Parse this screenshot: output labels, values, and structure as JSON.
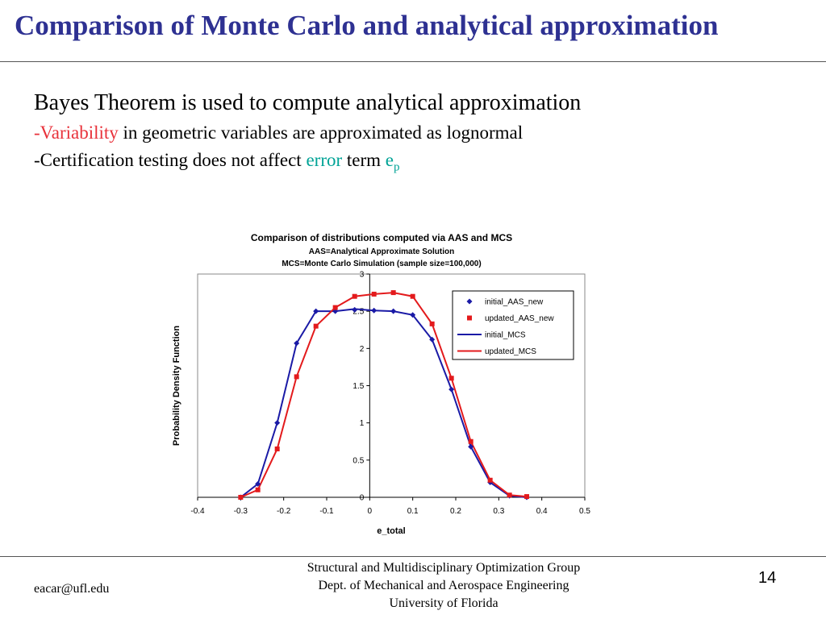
{
  "slide": {
    "title": "Comparison of Monte Carlo and analytical approximation",
    "bullet1": "Bayes Theorem is used to compute analytical approximation",
    "bullet2": {
      "prefix": "-",
      "highlight": "Variability",
      "rest": " in geometric variables are approximated as lognormal"
    },
    "bullet3": {
      "text": "-Certification testing does not affect ",
      "highlight": "error",
      "mid": " term ",
      "symbol": "e",
      "subscript": "p"
    },
    "footer": {
      "email": "eacar@ufl.edu",
      "line1": "Structural and Multidisciplinary Optimization Group",
      "line2": "Dept. of Mechanical and Aerospace Engineering",
      "line3": "University of Florida",
      "page": "14"
    },
    "colors": {
      "title": "#2e3192",
      "highlight_red": "#e8313a",
      "highlight_teal": "#00a396"
    }
  },
  "chart_data": {
    "type": "line",
    "title": "Comparison of distributions computed via AAS and MCS",
    "subtitle1": "AAS=Analytical Approximate Solution",
    "subtitle2": "MCS=Monte Carlo Simulation (sample size=100,000)",
    "xlabel": "e_total",
    "ylabel": "Probability Density Function",
    "xlim": [
      -0.4,
      0.5
    ],
    "ylim": [
      0,
      3
    ],
    "xticks": [
      "-0.4",
      "-0.3",
      "-0.2",
      "-0.1",
      "0",
      "0.1",
      "0.2",
      "0.3",
      "0.4",
      "0.5"
    ],
    "yticks": [
      "0",
      "0.5",
      "1",
      "1.5",
      "2",
      "2.5",
      "3"
    ],
    "grid": false,
    "legend_position": "top-right",
    "series": [
      {
        "name": "initial_AAS_new",
        "kind": "markers",
        "marker": "diamond",
        "color": "#1a1aa6",
        "x": [
          -0.3,
          -0.26,
          -0.215,
          -0.17,
          -0.125,
          -0.08,
          -0.035,
          0.01,
          0.055,
          0.1,
          0.145,
          0.19,
          0.235,
          0.28,
          0.325,
          0.365
        ],
        "y": [
          0.0,
          0.18,
          1.0,
          2.07,
          2.5,
          2.5,
          2.52,
          2.51,
          2.5,
          2.45,
          2.12,
          1.45,
          0.68,
          0.2,
          0.02,
          0.0
        ]
      },
      {
        "name": "updated_AAS_new",
        "kind": "markers",
        "marker": "square",
        "color": "#e31a1c",
        "x": [
          -0.3,
          -0.26,
          -0.215,
          -0.17,
          -0.125,
          -0.08,
          -0.035,
          0.01,
          0.055,
          0.1,
          0.145,
          0.19,
          0.235,
          0.28,
          0.325,
          0.365
        ],
        "y": [
          0.0,
          0.1,
          0.65,
          1.62,
          2.3,
          2.55,
          2.7,
          2.73,
          2.75,
          2.7,
          2.33,
          1.6,
          0.75,
          0.23,
          0.03,
          0.01
        ]
      },
      {
        "name": "initial_MCS",
        "kind": "line",
        "color": "#1a1aa6",
        "x": [
          -0.3,
          -0.26,
          -0.215,
          -0.17,
          -0.125,
          -0.08,
          -0.035,
          0.01,
          0.055,
          0.1,
          0.145,
          0.19,
          0.235,
          0.28,
          0.325,
          0.365
        ],
        "y": [
          0.0,
          0.18,
          1.0,
          2.07,
          2.5,
          2.5,
          2.53,
          2.51,
          2.5,
          2.45,
          2.12,
          1.45,
          0.68,
          0.2,
          0.02,
          0.0
        ]
      },
      {
        "name": "updated_MCS",
        "kind": "line",
        "color": "#e31a1c",
        "x": [
          -0.3,
          -0.26,
          -0.215,
          -0.17,
          -0.125,
          -0.08,
          -0.035,
          0.01,
          0.055,
          0.1,
          0.145,
          0.19,
          0.235,
          0.28,
          0.325,
          0.365
        ],
        "y": [
          0.0,
          0.1,
          0.65,
          1.62,
          2.3,
          2.55,
          2.7,
          2.73,
          2.75,
          2.7,
          2.33,
          1.6,
          0.75,
          0.23,
          0.03,
          0.01
        ]
      }
    ]
  }
}
